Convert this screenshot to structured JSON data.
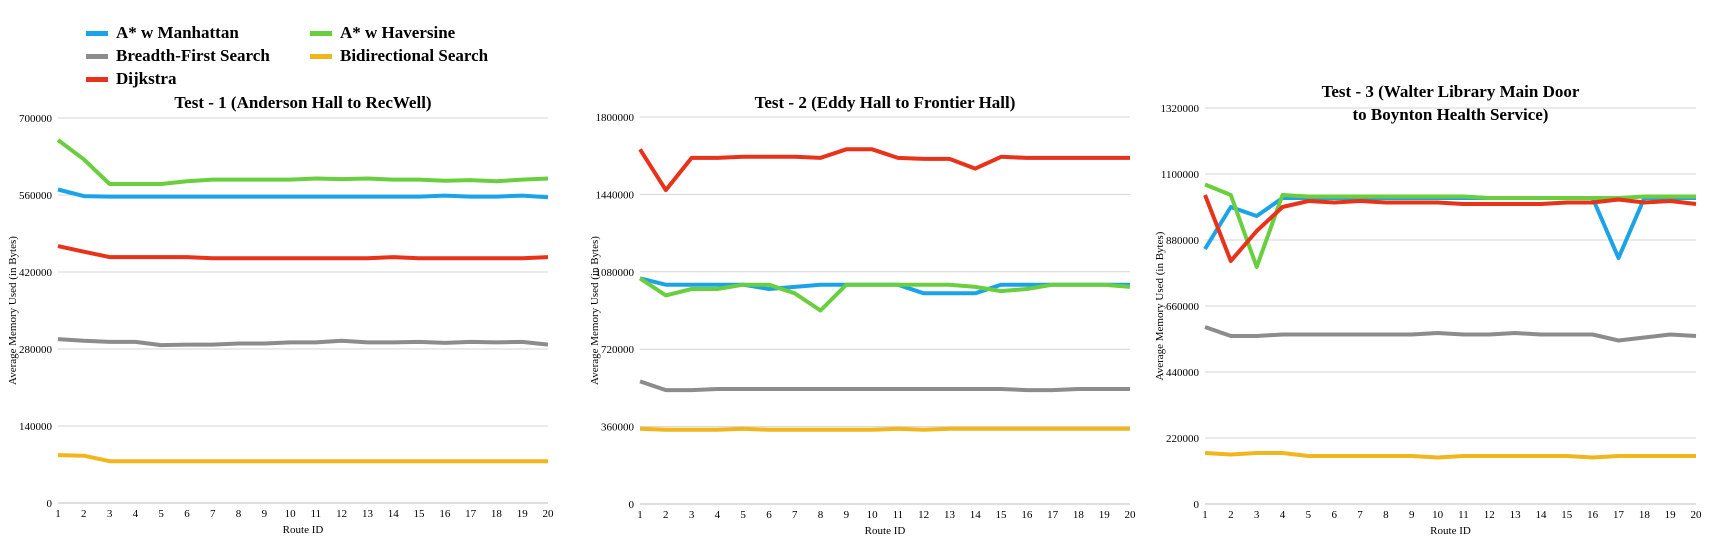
{
  "legend": [
    {
      "name": "A* w Manhattan",
      "color": "#1AA3E8"
    },
    {
      "name": "A* w Haversine",
      "color": "#69CF3E"
    },
    {
      "name": "Breadth-First Search",
      "color": "#8C8C8C"
    },
    {
      "name": "Bidirectional Search",
      "color": "#F0B61C"
    },
    {
      "name": "Dijkstra",
      "color": "#E8321A"
    }
  ],
  "chart_data": [
    {
      "type": "line",
      "title": "Test - 1 (Anderson Hall to RecWell)",
      "xlabel": "Route ID",
      "ylabel": "Average Memory Used (in Bytes)",
      "x": [
        1,
        2,
        3,
        4,
        5,
        6,
        7,
        8,
        9,
        10,
        11,
        12,
        13,
        14,
        15,
        16,
        17,
        18,
        19,
        20
      ],
      "ylim": [
        0,
        700000
      ],
      "yticks": [
        "0",
        "140000",
        "280000",
        "420000",
        "560000",
        "700000"
      ],
      "grid": true,
      "series": [
        {
          "name": "A* w Manhattan",
          "color": "#1AA3E8",
          "values": [
            570000,
            558000,
            557000,
            557000,
            557000,
            557000,
            557000,
            557000,
            557000,
            557000,
            557000,
            557000,
            557000,
            557000,
            557000,
            559000,
            557000,
            557000,
            559000,
            556000
          ]
        },
        {
          "name": "A* w Haversine",
          "color": "#69CF3E",
          "values": [
            660000,
            625000,
            580000,
            580000,
            580000,
            585000,
            588000,
            588000,
            588000,
            588000,
            590000,
            589000,
            590000,
            588000,
            588000,
            586000,
            587000,
            585000,
            588000,
            590000
          ]
        },
        {
          "name": "Breadth-First Search",
          "color": "#8C8C8C",
          "values": [
            298000,
            295000,
            293000,
            293000,
            287000,
            288000,
            288000,
            290000,
            290000,
            292000,
            292000,
            295000,
            292000,
            292000,
            293000,
            291000,
            293000,
            292000,
            293000,
            288000
          ]
        },
        {
          "name": "Bidirectional Search",
          "color": "#F0B61C",
          "values": [
            87000,
            86000,
            76000,
            76000,
            76000,
            76000,
            76000,
            76000,
            76000,
            76000,
            76000,
            76000,
            76000,
            76000,
            76000,
            76000,
            76000,
            76000,
            76000,
            76000
          ]
        },
        {
          "name": "Dijkstra",
          "color": "#E8321A",
          "values": [
            467000,
            457000,
            447000,
            447000,
            447000,
            447000,
            445000,
            445000,
            445000,
            445000,
            445000,
            445000,
            445000,
            447000,
            445000,
            445000,
            445000,
            445000,
            445000,
            447000
          ]
        }
      ]
    },
    {
      "type": "line",
      "title": "Test - 2 (Eddy Hall to Frontier Hall)",
      "xlabel": "Route ID",
      "ylabel": "Average Memory Used (in Bytes)",
      "x": [
        1,
        2,
        3,
        4,
        5,
        6,
        7,
        8,
        9,
        10,
        11,
        12,
        13,
        14,
        15,
        16,
        17,
        18,
        19,
        20
      ],
      "ylim": [
        0,
        1800000
      ],
      "yticks": [
        "0",
        "360000",
        "720000",
        "1080000",
        "1440000",
        "1800000"
      ],
      "grid": true,
      "series": [
        {
          "name": "A* w Manhattan",
          "color": "#1AA3E8",
          "values": [
            1050000,
            1020000,
            1020000,
            1020000,
            1020000,
            1000000,
            1010000,
            1020000,
            1020000,
            1020000,
            1020000,
            980000,
            980000,
            980000,
            1020000,
            1020000,
            1020000,
            1020000,
            1020000,
            1020000
          ]
        },
        {
          "name": "A* w Haversine",
          "color": "#69CF3E",
          "values": [
            1050000,
            970000,
            1000000,
            1000000,
            1020000,
            1020000,
            980000,
            900000,
            1020000,
            1020000,
            1020000,
            1020000,
            1020000,
            1010000,
            990000,
            1000000,
            1020000,
            1020000,
            1020000,
            1010000
          ]
        },
        {
          "name": "Breadth-First Search",
          "color": "#8C8C8C",
          "values": [
            570000,
            530000,
            530000,
            535000,
            535000,
            535000,
            535000,
            535000,
            535000,
            535000,
            535000,
            535000,
            535000,
            535000,
            535000,
            530000,
            530000,
            535000,
            535000,
            535000
          ]
        },
        {
          "name": "Bidirectional Search",
          "color": "#F0B61C",
          "values": [
            350000,
            345000,
            345000,
            345000,
            350000,
            345000,
            345000,
            345000,
            345000,
            345000,
            350000,
            345000,
            350000,
            350000,
            350000,
            350000,
            350000,
            350000,
            350000,
            350000
          ]
        },
        {
          "name": "Dijkstra",
          "color": "#E8321A",
          "values": [
            1650000,
            1460000,
            1610000,
            1610000,
            1615000,
            1615000,
            1615000,
            1610000,
            1650000,
            1650000,
            1610000,
            1605000,
            1605000,
            1560000,
            1615000,
            1610000,
            1610000,
            1610000,
            1610000,
            1610000
          ]
        }
      ]
    },
    {
      "type": "line",
      "title": "Test - 3 (Walter Library Main Door to Boynton Health Service)",
      "xlabel": "Route ID",
      "ylabel": "Average Memory Used (in Bytes)",
      "x": [
        1,
        2,
        3,
        4,
        5,
        6,
        7,
        8,
        9,
        10,
        11,
        12,
        13,
        14,
        15,
        16,
        17,
        18,
        19,
        20
      ],
      "ylim": [
        0,
        1320000
      ],
      "yticks": [
        "0",
        "220000",
        "440000",
        "660000",
        "880000",
        "1100000",
        "1320000"
      ],
      "grid": true,
      "series": [
        {
          "name": "A* w Manhattan",
          "color": "#1AA3E8",
          "values": [
            850000,
            990000,
            960000,
            1020000,
            1020000,
            1020000,
            1020000,
            1020000,
            1020000,
            1020000,
            1020000,
            1020000,
            1020000,
            1020000,
            1020000,
            1020000,
            820000,
            1020000,
            1020000,
            1020000
          ]
        },
        {
          "name": "A* w Haversine",
          "color": "#69CF3E",
          "values": [
            1065000,
            1030000,
            790000,
            1030000,
            1025000,
            1025000,
            1025000,
            1025000,
            1025000,
            1025000,
            1025000,
            1020000,
            1020000,
            1020000,
            1020000,
            1020000,
            1020000,
            1025000,
            1025000,
            1025000
          ]
        },
        {
          "name": "Breadth-First Search",
          "color": "#8C8C8C",
          "values": [
            590000,
            560000,
            560000,
            565000,
            565000,
            565000,
            565000,
            565000,
            565000,
            570000,
            565000,
            565000,
            570000,
            565000,
            565000,
            565000,
            545000,
            555000,
            565000,
            560000
          ]
        },
        {
          "name": "Bidirectional Search",
          "color": "#F0B61C",
          "values": [
            170000,
            165000,
            170000,
            170000,
            160000,
            160000,
            160000,
            160000,
            160000,
            155000,
            160000,
            160000,
            160000,
            160000,
            160000,
            155000,
            160000,
            160000,
            160000,
            160000
          ]
        },
        {
          "name": "Dijkstra",
          "color": "#E8321A",
          "values": [
            1030000,
            810000,
            910000,
            990000,
            1010000,
            1005000,
            1010000,
            1005000,
            1005000,
            1005000,
            1000000,
            1000000,
            1000000,
            1000000,
            1005000,
            1005000,
            1015000,
            1005000,
            1010000,
            1000000
          ]
        }
      ]
    }
  ]
}
